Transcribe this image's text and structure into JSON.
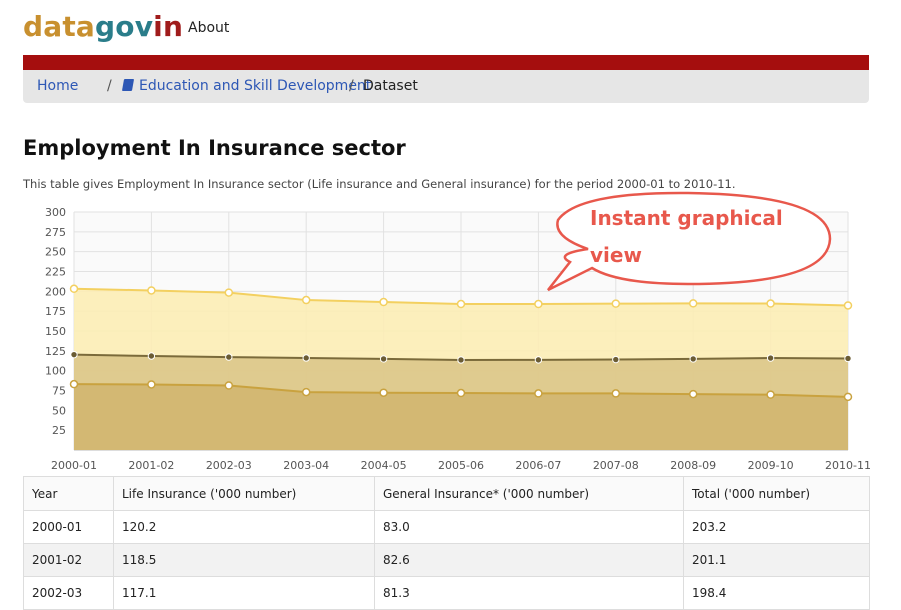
{
  "brand": {
    "part1": "data",
    "part2": "gov",
    "part3": "in"
  },
  "nav": {
    "about": "About"
  },
  "breadcrumb": {
    "home": "Home",
    "sep": "/",
    "category": "Education and Skill Development",
    "current": "Dataset"
  },
  "page": {
    "title": "Employment In Insurance sector",
    "description": "This table gives Employment In Insurance sector (Life insurance and General insurance) for the period 2000-01 to 2010-11."
  },
  "callout": {
    "line1": "Instant graphical",
    "line2": "view"
  },
  "chart_data": {
    "type": "area",
    "x": [
      "2000-01",
      "2001-02",
      "2002-03",
      "2003-04",
      "2004-05",
      "2005-06",
      "2006-07",
      "2007-08",
      "2008-09",
      "2009-10",
      "2010-11"
    ],
    "ylim": [
      0,
      300
    ],
    "yticks": [
      25,
      50,
      75,
      100,
      125,
      150,
      175,
      200,
      225,
      250,
      275,
      300
    ],
    "series": [
      {
        "values": [
          203.2,
          201.1,
          198.4,
          189.0,
          186.5,
          184.0,
          184.0,
          184.5,
          184.8,
          184.6,
          182.2
        ],
        "color": "#f3d060"
      },
      {
        "values": [
          120.2,
          118.5,
          117.1,
          116.0,
          114.8,
          113.5,
          113.6,
          114.0,
          114.8,
          115.9,
          115.4
        ],
        "color": "#7a6a3a"
      },
      {
        "values": [
          83.0,
          82.6,
          81.3,
          73.0,
          72.2,
          71.8,
          71.3,
          71.3,
          70.5,
          69.8,
          67.0
        ],
        "color": "#c9a23f"
      }
    ],
    "grid": true
  },
  "table": {
    "headers": [
      "Year",
      "Life Insurance ('000 number)",
      "General Insurance* ('000 number)",
      "Total ('000 number)"
    ],
    "rows": [
      [
        "2000-01",
        "120.2",
        "83.0",
        "203.2"
      ],
      [
        "2001-02",
        "118.5",
        "82.6",
        "201.1"
      ],
      [
        "2002-03",
        "117.1",
        "81.3",
        "198.4"
      ]
    ]
  }
}
